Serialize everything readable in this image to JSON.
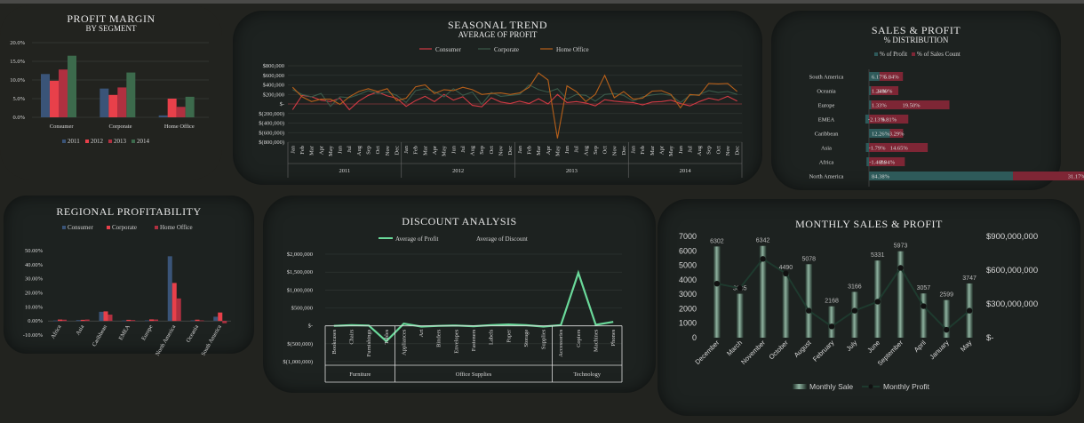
{
  "colors": {
    "c2011": "#3a5478",
    "c2012": "#e8404a",
    "c2013": "#b03040",
    "c2014": "#3c6a4c",
    "consumer": "#d23a44",
    "corporate": "#3a5a4a",
    "home": "#b8601a",
    "teal": "#2e5a5a",
    "green": "#6ad99a",
    "mono": "#1e3a2e"
  },
  "profit_margin": {
    "title": "PROFIT MARGIN",
    "subtitle": "BY SEGMENT",
    "chart_data": {
      "type": "bar",
      "categories": [
        "Consumer",
        "Corporate",
        "Home Office"
      ],
      "series": [
        {
          "name": "2011",
          "values": [
            11.6,
            7.7,
            0.5
          ]
        },
        {
          "name": "2012",
          "values": [
            9.8,
            6.0,
            5.0
          ]
        },
        {
          "name": "2013",
          "values": [
            12.8,
            8.0,
            2.8
          ]
        },
        {
          "name": "2014",
          "values": [
            16.5,
            12.0,
            5.5
          ]
        }
      ],
      "yticks": [
        "20.0%",
        "15.0%",
        "10.0%",
        "5.0%",
        "0.0%"
      ],
      "ylim": [
        0,
        20
      ]
    }
  },
  "seasonal": {
    "title": "SEASONAL TREND",
    "subtitle": "AVERAGE OF PROFIT",
    "chart_data": {
      "type": "line",
      "months": [
        "Jan",
        "Feb",
        "Mar",
        "Apr",
        "May",
        "Jun",
        "Jul",
        "Aug",
        "Sep",
        "Oct",
        "Nov",
        "Dec"
      ],
      "years": [
        "2011",
        "2012",
        "2013",
        "2014"
      ],
      "yticks": [
        "$800,000",
        "$600,000",
        "$400,000",
        "$200,000",
        "$-",
        "$(200,000)",
        "$(400,000)",
        "$(600,000)",
        "$(800,000)"
      ],
      "ylim": [
        -800000,
        800000
      ],
      "series": [
        {
          "name": "Consumer",
          "values": [
            -120000,
            180000,
            150000,
            80000,
            50000,
            120000,
            -120000,
            60000,
            180000,
            250000,
            170000,
            120000,
            -50000,
            70000,
            160000,
            50000,
            200000,
            80000,
            150000,
            -30000,
            -60000,
            130000,
            40000,
            10000,
            60000,
            10000,
            110000,
            0,
            200000,
            30000,
            50000,
            20000,
            -40000,
            90000,
            60000,
            40000,
            30000,
            -20000,
            40000,
            50000,
            80000,
            10000,
            -40000,
            50000,
            120000,
            80000,
            160000,
            60000
          ]
        },
        {
          "name": "Corporate",
          "values": [
            300000,
            200000,
            150000,
            220000,
            -50000,
            150000,
            130000,
            200000,
            280000,
            220000,
            250000,
            180000,
            30000,
            280000,
            320000,
            260000,
            150000,
            320000,
            180000,
            250000,
            -10000,
            240000,
            160000,
            180000,
            200000,
            400000,
            300000,
            250000,
            320000,
            100000,
            200000,
            180000,
            60000,
            200000,
            220000,
            180000,
            60000,
            150000,
            190000,
            210000,
            180000,
            30000,
            180000,
            200000,
            280000,
            240000,
            260000,
            200000
          ]
        },
        {
          "name": "Home Office",
          "values": [
            350000,
            150000,
            50000,
            100000,
            100000,
            -10000,
            150000,
            260000,
            320000,
            260000,
            320000,
            70000,
            120000,
            360000,
            400000,
            220000,
            300000,
            280000,
            350000,
            300000,
            200000,
            220000,
            230000,
            200000,
            230000,
            350000,
            650000,
            500000,
            -720000,
            380000,
            260000,
            50000,
            200000,
            600000,
            130000,
            260000,
            100000,
            120000,
            270000,
            280000,
            200000,
            -80000,
            200000,
            180000,
            430000,
            420000,
            430000,
            260000
          ]
        }
      ]
    }
  },
  "distribution": {
    "title": "SALES & PROFIT",
    "subtitle": "% DISTRIBUTION",
    "chart_data": {
      "type": "bar",
      "categories": [
        "South America",
        "Oceania",
        "Europe",
        "EMEA",
        "Caribbean",
        "Asia",
        "Africa",
        "North America"
      ],
      "series": [
        {
          "name": "% of Profit",
          "values": [
            6.17,
            1.24,
            1.33,
            -2.13,
            12.26,
            -1.79,
            -1.46,
            84.38
          ],
          "labels": [
            "6.17%",
            "1.24%",
            "1.33%",
            "-2.13%",
            "12.26%",
            "-1.79%",
            "-1.46%",
            "84.38%"
          ]
        },
        {
          "name": "% of Sales Count",
          "values": [
            5.84,
            6.8,
            19.5,
            9.81,
            3.29,
            14.65,
            8.94,
            31.17
          ],
          "labels": [
            "5.84%",
            "6.80%",
            "19.50%",
            "9.81%",
            "3.29%",
            "14.65%",
            "8.94%",
            "31.17%"
          ]
        }
      ]
    }
  },
  "regional": {
    "title": "REGIONAL PROFITABILITY",
    "chart_data": {
      "type": "bar",
      "categories": [
        "Africa",
        "Asia",
        "Caribbean",
        "EMEA",
        "Europe",
        "North America",
        "Oceania",
        "South America"
      ],
      "series": [
        {
          "name": "Consumer",
          "values": [
            0.3,
            0.6,
            6.5,
            0.3,
            0.4,
            46,
            0.4,
            3.0
          ]
        },
        {
          "name": "Corporate",
          "values": [
            1.0,
            0.8,
            6.8,
            0.8,
            1.1,
            27,
            0.9,
            6.0
          ]
        },
        {
          "name": "Home Office",
          "values": [
            0.9,
            1.0,
            4.5,
            0.6,
            1.0,
            16,
            0.4,
            -1.6
          ]
        }
      ],
      "yticks": [
        "50.00%",
        "40.00%",
        "30.00%",
        "20.00%",
        "10.00%",
        "0.00%",
        "-10.00%"
      ],
      "ylim": [
        -10,
        50
      ]
    }
  },
  "discount": {
    "title": "DISCOUNT ANALYSIS",
    "chart_data": {
      "type": "line",
      "legend": [
        "Average of Profit",
        "Average of Discount"
      ],
      "groups": [
        {
          "name": "Furniture",
          "items": [
            "Bookcases",
            "Chairs",
            "Furnishings",
            "Tables"
          ]
        },
        {
          "name": "Office Supplies",
          "items": [
            "Appliances",
            "Art",
            "Binders",
            "Envelopes",
            "Fasteners",
            "Labels",
            "Paper",
            "Storage",
            "Supplies"
          ]
        },
        {
          "name": "Technology",
          "items": [
            "Accessories",
            "Copiers",
            "Machines",
            "Phones"
          ]
        }
      ],
      "values": [
        0,
        20000,
        10000,
        -430000,
        60000,
        -20000,
        0,
        10000,
        -10000,
        20000,
        40000,
        20000,
        -20000,
        20000,
        1480000,
        30000,
        110000
      ],
      "yticks": [
        "$2,000,000",
        "$1,500,000",
        "$1,000,000",
        "$500,000",
        "$-",
        "$(500,000)",
        "$(1,000,000)"
      ],
      "ylim": [
        -1000000,
        2000000
      ]
    }
  },
  "monthly": {
    "title": "MONTHLY SALES & PROFIT",
    "chart_data": {
      "type": "bar",
      "categories": [
        "December",
        "March",
        "November",
        "October",
        "August",
        "February",
        "July",
        "June",
        "September",
        "April",
        "January",
        "May"
      ],
      "sales": [
        6302,
        3035,
        6342,
        4490,
        5078,
        2168,
        3166,
        5331,
        5973,
        3057,
        2599,
        3747
      ],
      "sales_labels": [
        "6302",
        "3035",
        "6342",
        "4490",
        "5078",
        "2168",
        "3166",
        "5331",
        "5973",
        "3057",
        "2599",
        "3747"
      ],
      "profit": [
        480000000,
        440000000,
        700000000,
        570000000,
        240000000,
        100000000,
        240000000,
        320000000,
        620000000,
        280000000,
        70000000,
        240000000
      ],
      "yticks_left": [
        "7000",
        "6000",
        "5000",
        "4000",
        "3000",
        "2000",
        "1000",
        "0"
      ],
      "yticks_right": [
        "$900,000,000",
        "$600,000,000",
        "$300,000,000",
        "$-"
      ],
      "legend": [
        "Monthly Sale",
        "Monthly Profit"
      ]
    }
  }
}
